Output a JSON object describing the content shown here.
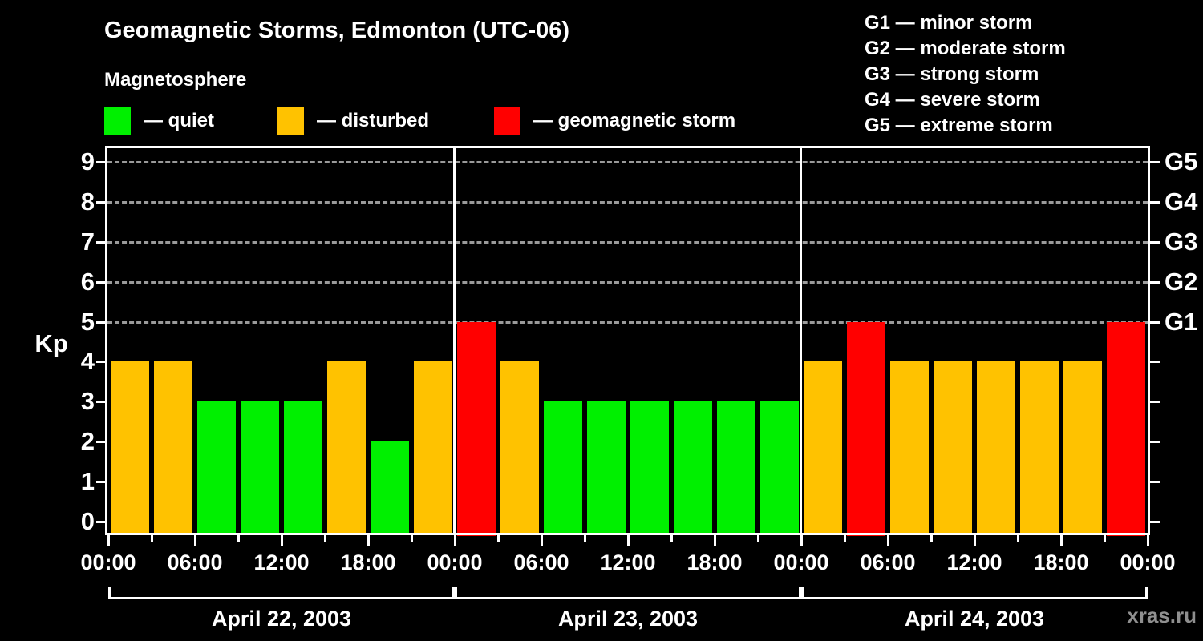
{
  "title": "Geomagnetic Storms, Edmonton (UTC-06)",
  "subtitle": "Magnetosphere",
  "dash": "—",
  "legend": {
    "items": [
      {
        "state": "quiet",
        "label": "quiet",
        "color": "#00F000"
      },
      {
        "state": "disturbed",
        "label": "disturbed",
        "color": "#FFC200"
      },
      {
        "state": "storm",
        "label": "geomagnetic storm",
        "color": "#FF0000"
      }
    ]
  },
  "storm_scale_legend": {
    "items": [
      {
        "code": "G1",
        "name": "minor storm"
      },
      {
        "code": "G2",
        "name": "moderate storm"
      },
      {
        "code": "G3",
        "name": "strong storm"
      },
      {
        "code": "G4",
        "name": "severe storm"
      },
      {
        "code": "G5",
        "name": "extreme storm"
      }
    ]
  },
  "watermark": "xras.ru",
  "chart_data": {
    "type": "bar",
    "title": "Geomagnetic Storms, Edmonton (UTC-06)",
    "ylabel": "Kp",
    "bar_hours": 3,
    "y_ticks": [
      0,
      1,
      2,
      3,
      4,
      5,
      6,
      7,
      8,
      9
    ],
    "gridline_values": [
      5,
      6,
      7,
      8,
      9
    ],
    "y_range": [
      -0.35,
      9.4
    ],
    "grid": "dashed horizontal at Kp 5-9",
    "colors": {
      "quiet": "#00F000",
      "disturbed": "#FFC200",
      "storm": "#FF0000"
    },
    "right_axis": [
      {
        "value": 5,
        "label": "G1"
      },
      {
        "value": 6,
        "label": "G2"
      },
      {
        "value": 7,
        "label": "G3"
      },
      {
        "value": 8,
        "label": "G4"
      },
      {
        "value": 9,
        "label": "G5"
      }
    ],
    "x_axis_labels": [
      "00:00",
      "06:00",
      "12:00",
      "18:00",
      "00:00",
      "06:00",
      "12:00",
      "18:00",
      "00:00",
      "06:00",
      "12:00",
      "18:00",
      "00:00"
    ],
    "days": [
      {
        "date": "April 22, 2003",
        "values": [
          4,
          4,
          3,
          3,
          3,
          4,
          2,
          4
        ],
        "states": [
          "disturbed",
          "disturbed",
          "quiet",
          "quiet",
          "quiet",
          "disturbed",
          "quiet",
          "disturbed"
        ]
      },
      {
        "date": "April 23, 2003",
        "values": [
          5,
          4,
          3,
          3,
          3,
          3,
          3,
          3
        ],
        "states": [
          "storm",
          "disturbed",
          "quiet",
          "quiet",
          "quiet",
          "quiet",
          "quiet",
          "quiet"
        ]
      },
      {
        "date": "April 24, 2003",
        "values": [
          4,
          5,
          4,
          4,
          4,
          4,
          4,
          5
        ],
        "states": [
          "disturbed",
          "storm",
          "disturbed",
          "disturbed",
          "disturbed",
          "disturbed",
          "disturbed",
          "storm"
        ]
      }
    ]
  }
}
